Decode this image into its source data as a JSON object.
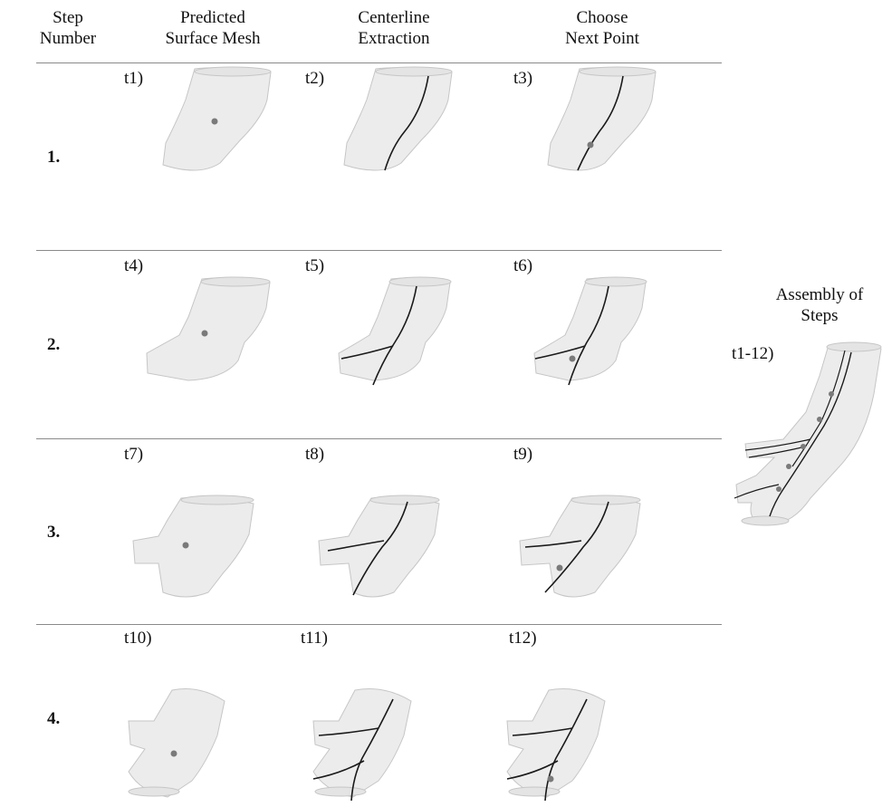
{
  "headers": {
    "step_number": "Step\nNumber",
    "predicted_mesh": "Predicted\nSurface Mesh",
    "centerline": "Centerline\nExtraction",
    "next_point": "Choose\nNext Point"
  },
  "rows": [
    {
      "step": "1.",
      "labels": [
        "t1)",
        "t2)",
        "t3)"
      ]
    },
    {
      "step": "2.",
      "labels": [
        "t4)",
        "t5)",
        "t6)"
      ]
    },
    {
      "step": "3.",
      "labels": [
        "t7)",
        "t8)",
        "t9)"
      ]
    },
    {
      "step": "4.",
      "labels": [
        "t10)",
        "t11)",
        "t12)"
      ]
    }
  ],
  "assembly": {
    "title": "Assembly of\nSteps",
    "label": "t1-12)"
  },
  "colors": {
    "mesh_fill": "#ececec",
    "mesh_stroke": "#c4c4c4",
    "centerline": "#1a1a1a",
    "point": "#7a7a7a",
    "separator": "#8a8a8a"
  }
}
